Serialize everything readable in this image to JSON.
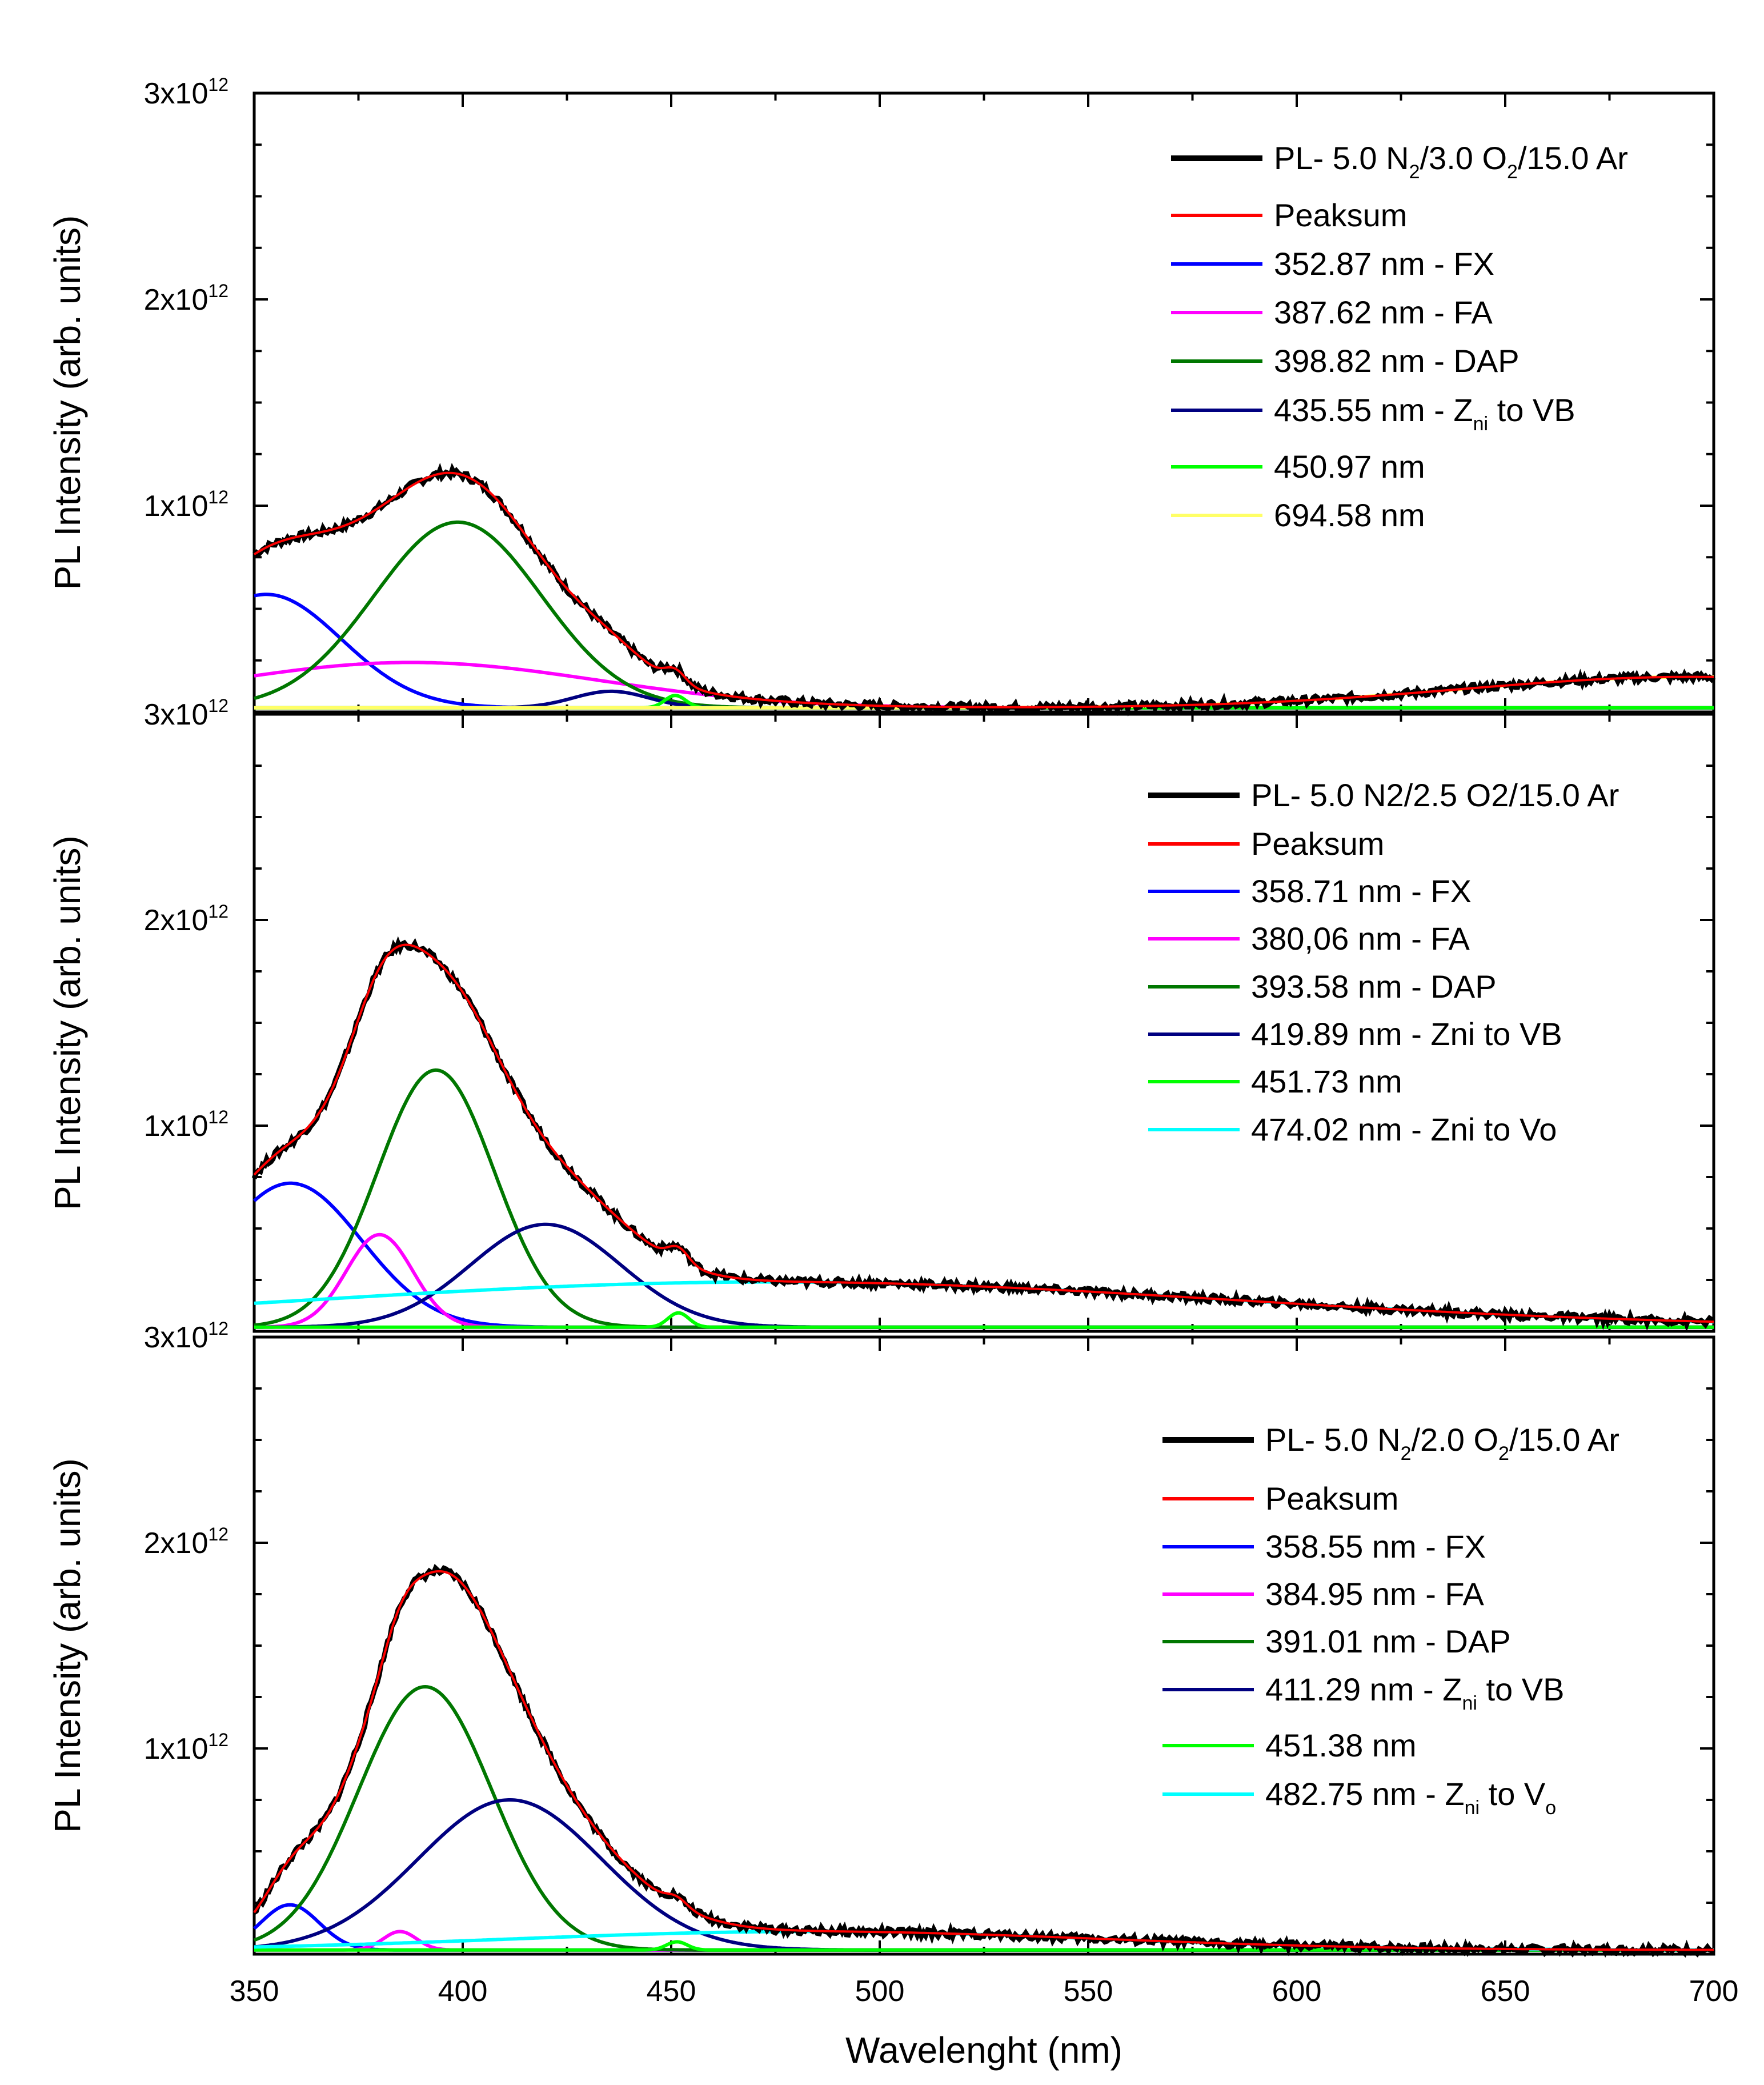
{
  "chart_data": [
    {
      "type": "line",
      "xlim": [
        350,
        700
      ],
      "ylim": [
        0,
        3000000000000.0
      ],
      "ylabel": "PL Intensity (arb. units)",
      "yticks": [
        {
          "value": 1000000000000.0,
          "mant": "1x10",
          "exp": "12"
        },
        {
          "value": 2000000000000.0,
          "mant": "2x10",
          "exp": "12"
        },
        {
          "value": 3000000000000.0,
          "mant": "3x10",
          "exp": "12"
        }
      ],
      "legend": [
        {
          "key": "data",
          "color": "#000000",
          "parts": [
            [
              "PL- 5.0 N",
              ""
            ],
            [
              "2",
              "sub"
            ],
            [
              "/3.0 O",
              ""
            ],
            [
              "2",
              "sub"
            ],
            [
              "/15.0 Ar",
              ""
            ]
          ]
        },
        {
          "key": "sum",
          "color": "#ff0000",
          "parts": [
            [
              "Peaksum",
              ""
            ]
          ]
        },
        {
          "key": "p1",
          "color": "#0000ff",
          "parts": [
            [
              "352.87 nm - FX",
              ""
            ]
          ]
        },
        {
          "key": "p2",
          "color": "#ff00ff",
          "parts": [
            [
              "387.62 nm - FA",
              ""
            ]
          ]
        },
        {
          "key": "p3",
          "color": "#007700",
          "parts": [
            [
              "398.82 nm - DAP",
              ""
            ]
          ]
        },
        {
          "key": "p4",
          "color": "#000080",
          "parts": [
            [
              "435.55 nm - Z",
              ""
            ],
            [
              "ni",
              "sub"
            ],
            [
              " to VB",
              ""
            ]
          ]
        },
        {
          "key": "p5",
          "color": "#00ff00",
          "parts": [
            [
              "450.97 nm",
              ""
            ]
          ]
        },
        {
          "key": "p6",
          "color": "#ffff66",
          "parts": [
            [
              "694.58 nm",
              ""
            ]
          ]
        }
      ],
      "baseline": 20000000000.0,
      "peaks": [
        {
          "key": "p1",
          "center": 352.87,
          "amp": 550000000000.0,
          "sigma": 18
        },
        {
          "key": "p2",
          "center": 387.62,
          "amp": 220000000000.0,
          "sigma": 45
        },
        {
          "key": "p3",
          "center": 398.82,
          "amp": 900000000000.0,
          "sigma": 20
        },
        {
          "key": "p4",
          "center": 435.55,
          "amp": 80000000000.0,
          "sigma": 9
        },
        {
          "key": "p5",
          "center": 450.97,
          "amp": 60000000000.0,
          "sigma": 2.5
        },
        {
          "key": "p6",
          "center": 694.58,
          "amp": 150000000000.0,
          "sigma": 55
        }
      ]
    },
    {
      "type": "line",
      "xlim": [
        350,
        700
      ],
      "ylim": [
        0,
        3000000000000.0
      ],
      "ylabel": "PL Intensity (arb. units)",
      "yticks": [
        {
          "value": 1000000000000.0,
          "mant": "1x10",
          "exp": "12"
        },
        {
          "value": 2000000000000.0,
          "mant": "2x10",
          "exp": "12"
        },
        {
          "value": 3000000000000.0,
          "mant": "3x10",
          "exp": "12"
        }
      ],
      "legend": [
        {
          "key": "data",
          "color": "#000000",
          "parts": [
            [
              "PL- 5.0 N2/2.5 O2/15.0 Ar",
              ""
            ]
          ]
        },
        {
          "key": "sum",
          "color": "#ff0000",
          "parts": [
            [
              "Peaksum",
              ""
            ]
          ]
        },
        {
          "key": "p1",
          "color": "#0000ff",
          "parts": [
            [
              "358.71 nm - FX",
              ""
            ]
          ]
        },
        {
          "key": "p2",
          "color": "#ff00ff",
          "parts": [
            [
              "380,06 nm - FA",
              ""
            ]
          ]
        },
        {
          "key": "p3",
          "color": "#007700",
          "parts": [
            [
              "393.58 nm - DAP",
              ""
            ]
          ]
        },
        {
          "key": "p4",
          "color": "#000080",
          "parts": [
            [
              "419.89 nm - Zni to VB",
              ""
            ]
          ]
        },
        {
          "key": "p5",
          "color": "#00ff00",
          "parts": [
            [
              "451.73 nm",
              ""
            ]
          ]
        },
        {
          "key": "p6",
          "color": "#00ffff",
          "parts": [
            [
              "474.02 nm - Zni to Vo",
              ""
            ]
          ]
        }
      ],
      "baseline": 20000000000.0,
      "peaks": [
        {
          "key": "p1",
          "center": 358.71,
          "amp": 700000000000.0,
          "sigma": 17
        },
        {
          "key": "p2",
          "center": 380.06,
          "amp": 450000000000.0,
          "sigma": 8
        },
        {
          "key": "p3",
          "center": 393.58,
          "amp": 1250000000000.0,
          "sigma": 14
        },
        {
          "key": "p4",
          "center": 419.89,
          "amp": 500000000000.0,
          "sigma": 18
        },
        {
          "key": "p5",
          "center": 451.73,
          "amp": 70000000000.0,
          "sigma": 2.5
        },
        {
          "key": "p6",
          "center": 474.02,
          "amp": 220000000000.0,
          "sigma": 110
        }
      ]
    },
    {
      "type": "line",
      "xlim": [
        350,
        700
      ],
      "ylim": [
        0,
        3000000000000.0
      ],
      "xlabel": "Wavelenght (nm)",
      "xticks": [
        350,
        400,
        450,
        500,
        550,
        600,
        650,
        700
      ],
      "ylabel": "PL Intensity (arb. units)",
      "yticks": [
        {
          "value": 1000000000000.0,
          "mant": "1x10",
          "exp": "12"
        },
        {
          "value": 2000000000000.0,
          "mant": "2x10",
          "exp": "12"
        },
        {
          "value": 3000000000000.0,
          "mant": "3x10",
          "exp": "12"
        }
      ],
      "legend": [
        {
          "key": "data",
          "color": "#000000",
          "parts": [
            [
              "PL- 5.0 N",
              ""
            ],
            [
              "2",
              "sub"
            ],
            [
              "/2.0 O",
              ""
            ],
            [
              "2",
              "sub"
            ],
            [
              "/15.0 Ar",
              ""
            ]
          ]
        },
        {
          "key": "sum",
          "color": "#ff0000",
          "parts": [
            [
              "Peaksum",
              ""
            ]
          ]
        },
        {
          "key": "p1",
          "color": "#0000ff",
          "parts": [
            [
              "358.55 nm - FX",
              ""
            ]
          ]
        },
        {
          "key": "p2",
          "color": "#ff00ff",
          "parts": [
            [
              "384.95 nm - FA",
              ""
            ]
          ]
        },
        {
          "key": "p3",
          "color": "#007700",
          "parts": [
            [
              "391.01 nm - DAP",
              ""
            ]
          ]
        },
        {
          "key": "p4",
          "color": "#000080",
          "parts": [
            [
              "411.29 nm - Z",
              ""
            ],
            [
              "ni",
              "sub"
            ],
            [
              " to VB",
              ""
            ]
          ]
        },
        {
          "key": "p5",
          "color": "#00ff00",
          "parts": [
            [
              "451.38 nm",
              ""
            ]
          ]
        },
        {
          "key": "p6",
          "color": "#00ffff",
          "parts": [
            [
              "482.75 nm - Z",
              ""
            ],
            [
              "ni",
              "sub"
            ],
            [
              " to V",
              ""
            ],
            [
              "o",
              "sub"
            ]
          ]
        }
      ],
      "baseline": 20000000000.0,
      "peaks": [
        {
          "key": "p1",
          "center": 358.55,
          "amp": 220000000000.0,
          "sigma": 7
        },
        {
          "key": "p2",
          "center": 384.95,
          "amp": 90000000000.0,
          "sigma": 4
        },
        {
          "key": "p3",
          "center": 391.01,
          "amp": 1280000000000.0,
          "sigma": 16
        },
        {
          "key": "p4",
          "center": 411.29,
          "amp": 730000000000.0,
          "sigma": 22
        },
        {
          "key": "p5",
          "center": 451.38,
          "amp": 40000000000.0,
          "sigma": 2.5
        },
        {
          "key": "p6",
          "center": 482.75,
          "amp": 90000000000.0,
          "sigma": 70
        }
      ]
    }
  ]
}
